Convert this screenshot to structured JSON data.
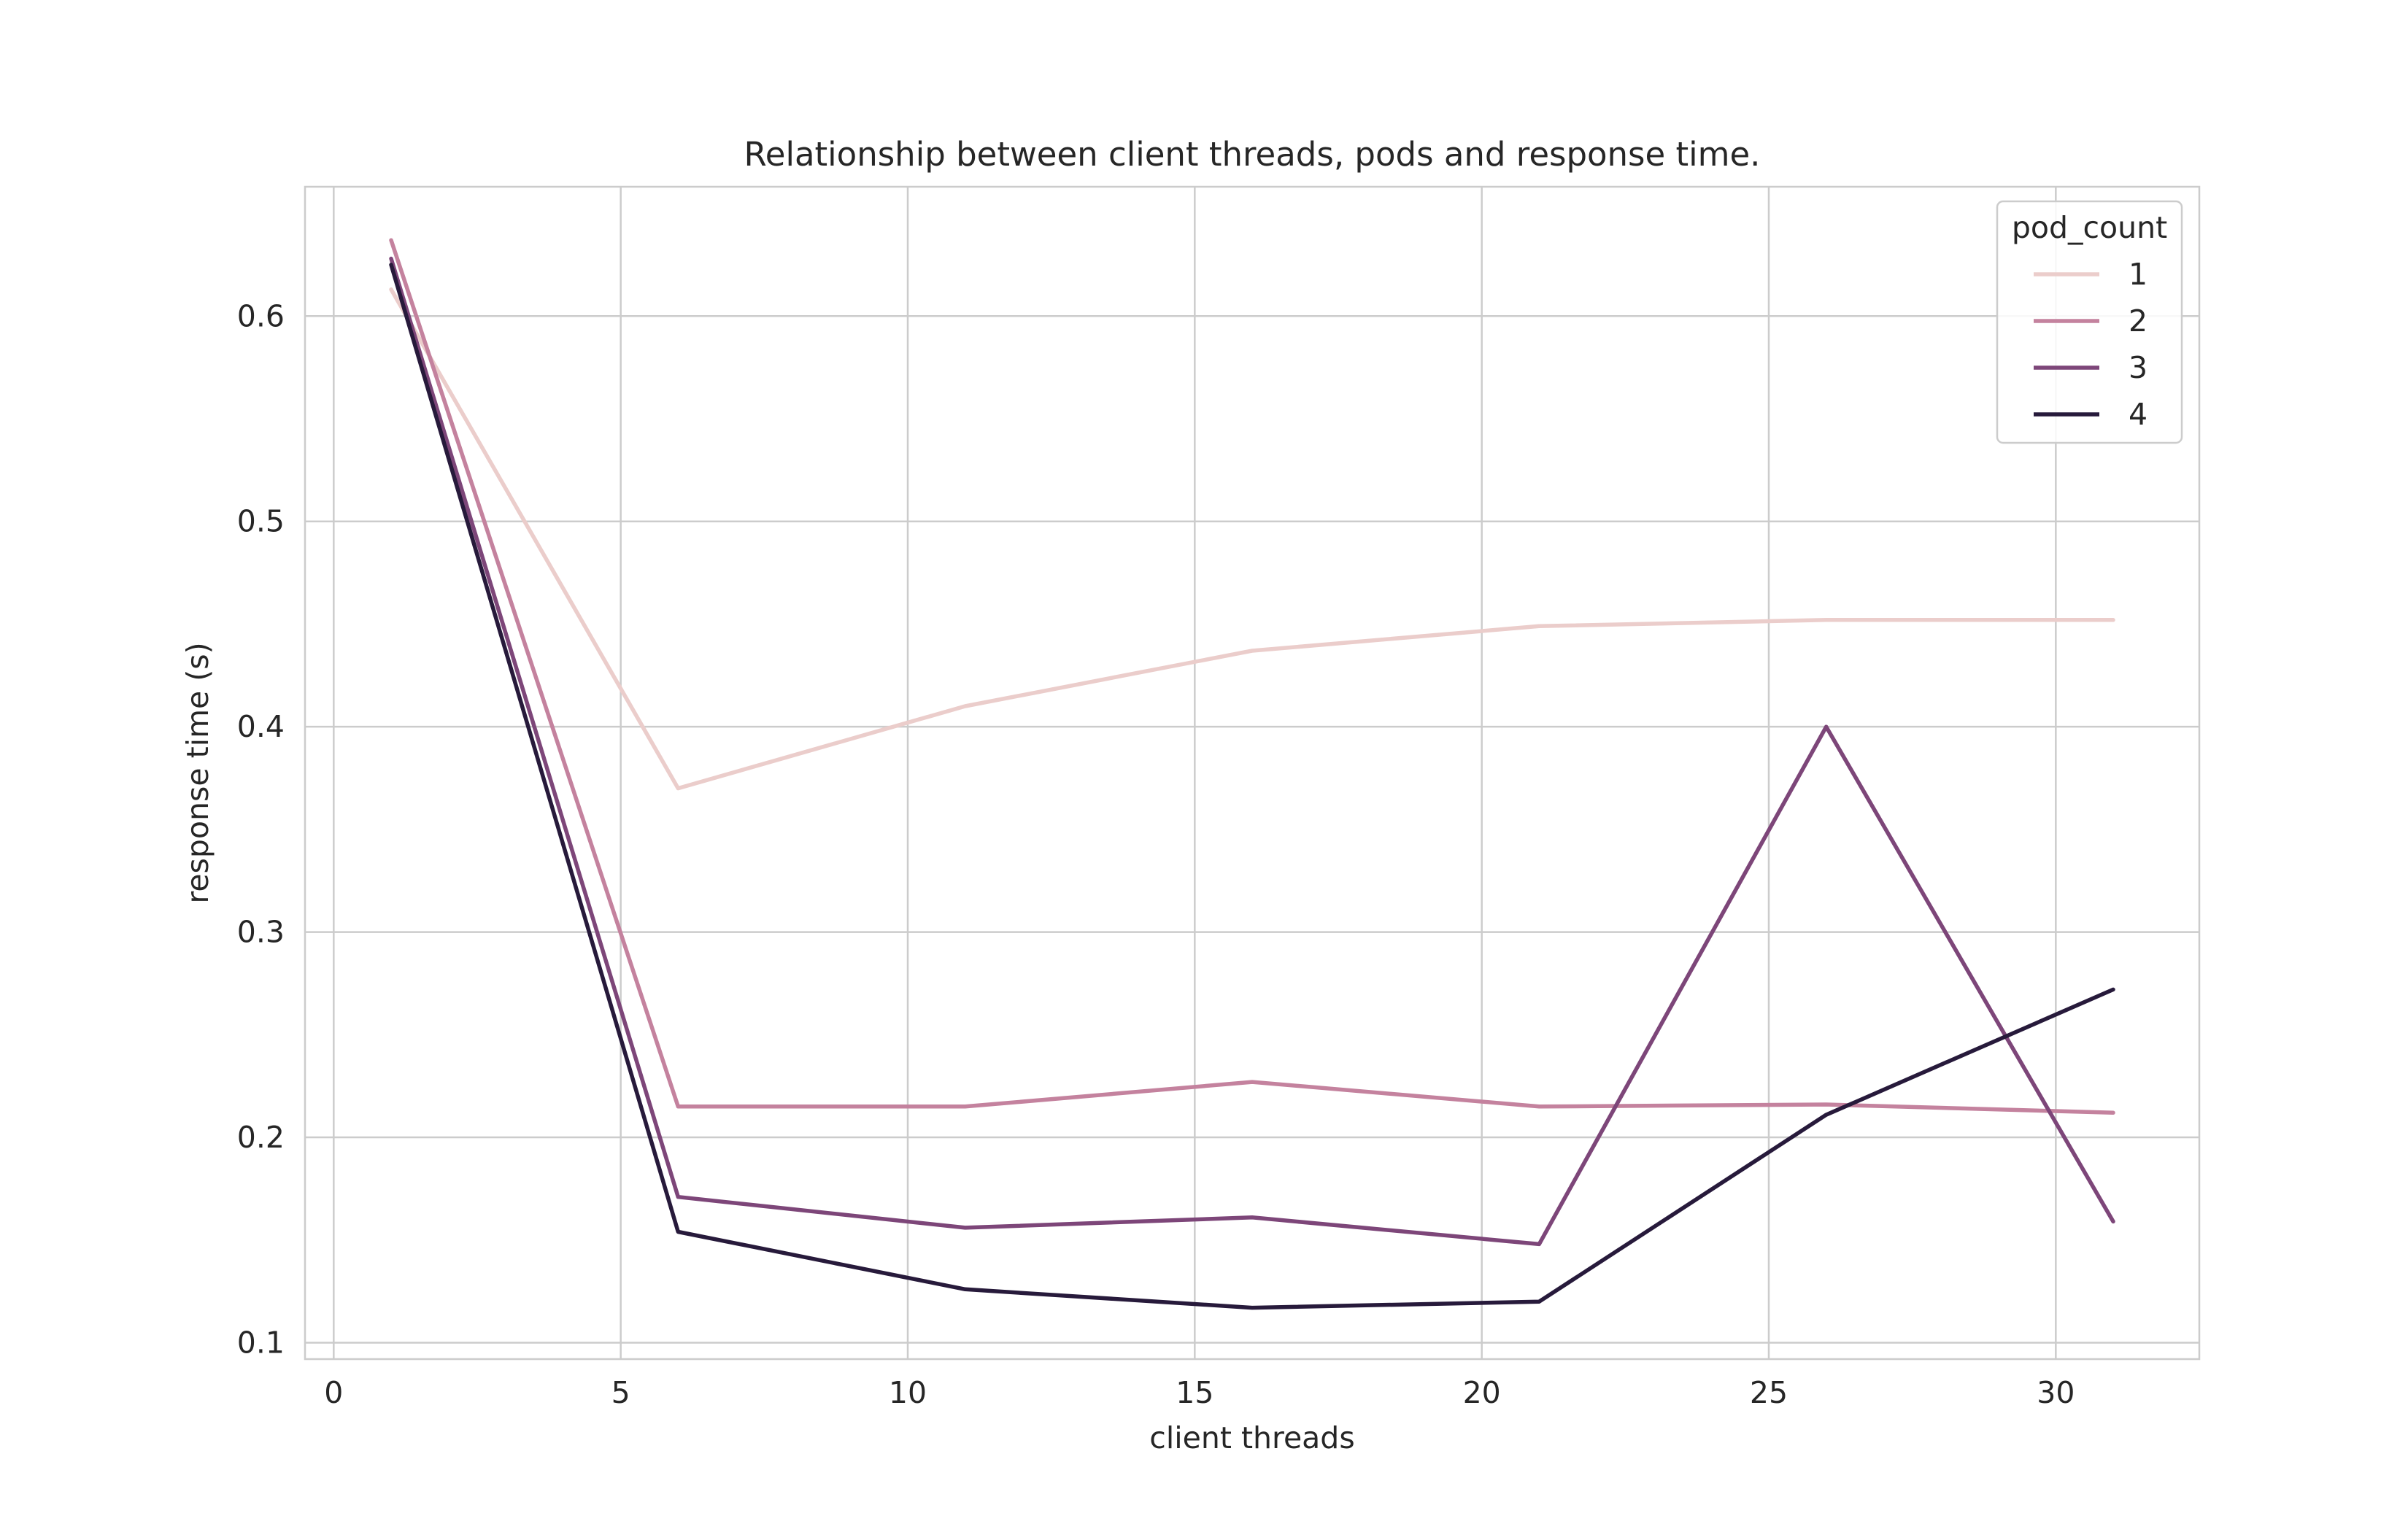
{
  "chart_data": {
    "type": "line",
    "title": "Relationship between client threads, pods and response time.",
    "xlabel": "client threads",
    "ylabel": "response time (s)",
    "xlim": [
      -0.5,
      32.5
    ],
    "ylim": [
      0.092,
      0.663
    ],
    "xticks": [
      0,
      5,
      10,
      15,
      20,
      25,
      30
    ],
    "xtick_labels": [
      "0",
      "5",
      "10",
      "15",
      "20",
      "25",
      "30"
    ],
    "yticks": [
      0.1,
      0.2,
      0.3,
      0.4,
      0.5,
      0.6
    ],
    "ytick_labels": [
      "0.1",
      "0.2",
      "0.3",
      "0.4",
      "0.5",
      "0.6"
    ],
    "grid": true,
    "legend": {
      "title": "pod_count",
      "placement": "top-right"
    },
    "x": [
      1,
      6,
      11,
      16,
      21,
      26,
      31
    ],
    "series": [
      {
        "name": "1",
        "color": "#ebcdcb",
        "values": [
          0.613,
          0.37,
          0.41,
          0.437,
          0.449,
          0.452,
          0.452
        ]
      },
      {
        "name": "2",
        "color": "#c4829e",
        "values": [
          0.637,
          0.215,
          0.215,
          0.227,
          0.215,
          0.216,
          0.212
        ]
      },
      {
        "name": "3",
        "color": "#7d4679",
        "values": [
          0.628,
          0.171,
          0.156,
          0.161,
          0.148,
          0.4,
          0.159
        ]
      },
      {
        "name": "4",
        "color": "#271a3b",
        "values": [
          0.625,
          0.154,
          0.126,
          0.117,
          0.12,
          0.211,
          0.272
        ]
      }
    ]
  }
}
